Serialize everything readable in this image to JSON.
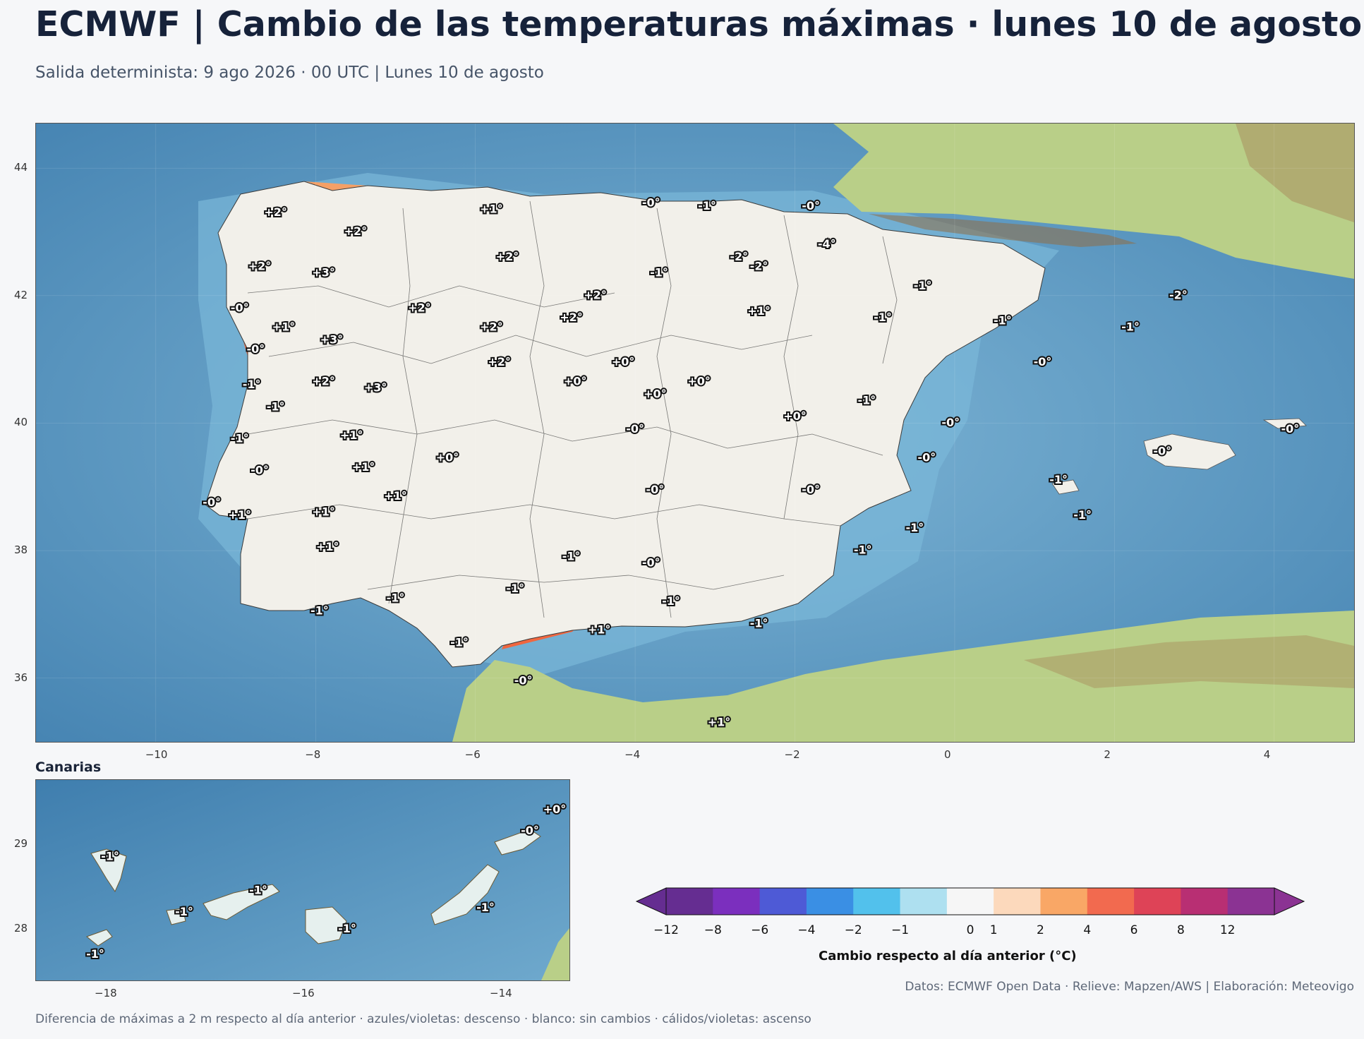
{
  "header": {
    "title": "ECMWF | Cambio de las temperaturas máximas · lunes 10 de agosto",
    "subtitle": "Salida determinista: 9 ago 2026 · 00 UTC  |  Lunes 10 de agosto"
  },
  "main_map": {
    "lon_range": [
      -11.5,
      5.0
    ],
    "lat_range": [
      35.0,
      44.7
    ],
    "x_ticks": [
      "−10",
      "−8",
      "−6",
      "−4",
      "−2",
      "0",
      "2",
      "4"
    ],
    "y_ticks": [
      "44",
      "42",
      "40",
      "38",
      "36"
    ],
    "labels": [
      {
        "text": "+2°",
        "lon": -8.5,
        "lat": 43.3
      },
      {
        "text": "+2°",
        "lon": -7.5,
        "lat": 43.0
      },
      {
        "text": "+1°",
        "lon": -5.8,
        "lat": 43.35
      },
      {
        "text": "-0°",
        "lon": -3.8,
        "lat": 43.45
      },
      {
        "text": "-1°",
        "lon": -3.1,
        "lat": 43.4
      },
      {
        "text": "-0°",
        "lon": -1.8,
        "lat": 43.4
      },
      {
        "text": "-4°",
        "lon": -1.6,
        "lat": 42.8
      },
      {
        "text": "+2°",
        "lon": -8.7,
        "lat": 42.45
      },
      {
        "text": "+3°",
        "lon": -7.9,
        "lat": 42.35
      },
      {
        "text": "+2°",
        "lon": -5.6,
        "lat": 42.6
      },
      {
        "text": "-2°",
        "lon": -2.7,
        "lat": 42.6
      },
      {
        "text": "-2°",
        "lon": -2.45,
        "lat": 42.45
      },
      {
        "text": "-1°",
        "lon": -3.7,
        "lat": 42.35
      },
      {
        "text": "+2°",
        "lon": -4.5,
        "lat": 42.0
      },
      {
        "text": "-1°",
        "lon": -0.4,
        "lat": 42.15
      },
      {
        "text": "-2°",
        "lon": 2.8,
        "lat": 42.0
      },
      {
        "text": "-0°",
        "lon": -8.95,
        "lat": 41.8
      },
      {
        "text": "+1°",
        "lon": -8.4,
        "lat": 41.5
      },
      {
        "text": "+2°",
        "lon": -6.7,
        "lat": 41.8
      },
      {
        "text": "+2°",
        "lon": -4.8,
        "lat": 41.65
      },
      {
        "text": "+1°",
        "lon": -2.45,
        "lat": 41.75
      },
      {
        "text": "-1°",
        "lon": -0.9,
        "lat": 41.65
      },
      {
        "text": "-1°",
        "lon": 0.6,
        "lat": 41.6
      },
      {
        "text": "-1°",
        "lon": 2.2,
        "lat": 41.5
      },
      {
        "text": "+3°",
        "lon": -7.8,
        "lat": 41.3
      },
      {
        "text": "+2°",
        "lon": -5.8,
        "lat": 41.5
      },
      {
        "text": "-0°",
        "lon": -8.75,
        "lat": 41.15
      },
      {
        "text": "+2°",
        "lon": -5.7,
        "lat": 40.95
      },
      {
        "text": "+0°",
        "lon": -4.15,
        "lat": 40.95
      },
      {
        "text": "-0°",
        "lon": 1.1,
        "lat": 40.95
      },
      {
        "text": "-1°",
        "lon": -8.8,
        "lat": 40.6
      },
      {
        "text": "+2°",
        "lon": -7.9,
        "lat": 40.65
      },
      {
        "text": "+3°",
        "lon": -7.25,
        "lat": 40.55
      },
      {
        "text": "+0°",
        "lon": -4.75,
        "lat": 40.65
      },
      {
        "text": "+0°",
        "lon": -3.2,
        "lat": 40.65
      },
      {
        "text": "+0°",
        "lon": -3.75,
        "lat": 40.45
      },
      {
        "text": "-1°",
        "lon": -1.1,
        "lat": 40.35
      },
      {
        "text": "-1°",
        "lon": -8.5,
        "lat": 40.25
      },
      {
        "text": "+0°",
        "lon": -2.0,
        "lat": 40.1
      },
      {
        "text": "-0°",
        "lon": -0.05,
        "lat": 40.0
      },
      {
        "text": "-0°",
        "lon": 4.2,
        "lat": 39.9
      },
      {
        "text": "+1°",
        "lon": -7.55,
        "lat": 39.8
      },
      {
        "text": "-0°",
        "lon": -4.0,
        "lat": 39.9
      },
      {
        "text": "-1°",
        "lon": -8.95,
        "lat": 39.75
      },
      {
        "text": "-0°",
        "lon": -0.35,
        "lat": 39.45
      },
      {
        "text": "-0°",
        "lon": 2.6,
        "lat": 39.55
      },
      {
        "text": "+0°",
        "lon": -6.35,
        "lat": 39.45
      },
      {
        "text": "+1°",
        "lon": -7.4,
        "lat": 39.3
      },
      {
        "text": "-0°",
        "lon": -8.7,
        "lat": 39.25
      },
      {
        "text": "-1°",
        "lon": 1.3,
        "lat": 39.1
      },
      {
        "text": "-0°",
        "lon": -3.75,
        "lat": 38.95
      },
      {
        "text": "-0°",
        "lon": -1.8,
        "lat": 38.95
      },
      {
        "text": "+1°",
        "lon": -7.0,
        "lat": 38.85
      },
      {
        "text": "-0°",
        "lon": -9.3,
        "lat": 38.75
      },
      {
        "text": "+1°",
        "lon": -8.95,
        "lat": 38.55
      },
      {
        "text": "+1°",
        "lon": -7.9,
        "lat": 38.6
      },
      {
        "text": "-1°",
        "lon": 1.6,
        "lat": 38.55
      },
      {
        "text": "-1°",
        "lon": -0.5,
        "lat": 38.35
      },
      {
        "text": "+1°",
        "lon": -7.85,
        "lat": 38.05
      },
      {
        "text": "-1°",
        "lon": -4.8,
        "lat": 37.9
      },
      {
        "text": "-1°",
        "lon": -1.15,
        "lat": 38.0
      },
      {
        "text": "-0°",
        "lon": -3.8,
        "lat": 37.8
      },
      {
        "text": "-1°",
        "lon": -5.5,
        "lat": 37.4
      },
      {
        "text": "-1°",
        "lon": -7.0,
        "lat": 37.25
      },
      {
        "text": "-1°",
        "lon": -3.55,
        "lat": 37.2
      },
      {
        "text": "-1°",
        "lon": -7.95,
        "lat": 37.05
      },
      {
        "text": "-1°",
        "lon": -2.45,
        "lat": 36.85
      },
      {
        "text": "+1°",
        "lon": -4.45,
        "lat": 36.75
      },
      {
        "text": "-1°",
        "lon": -6.2,
        "lat": 36.55
      },
      {
        "text": "-0°",
        "lon": -5.4,
        "lat": 35.95
      },
      {
        "text": "+1°",
        "lon": -2.95,
        "lat": 35.3
      }
    ]
  },
  "canary": {
    "title": "Canarias",
    "lon_range": [
      -18.7,
      -13.3
    ],
    "lat_range": [
      27.4,
      29.75
    ],
    "x_ticks": [
      "−18",
      "−16",
      "−14"
    ],
    "y_ticks": [
      "29",
      "28"
    ],
    "labels": [
      {
        "text": "-1°",
        "lon": -17.95,
        "lat": 28.85
      },
      {
        "text": "-1°",
        "lon": -17.2,
        "lat": 28.2
      },
      {
        "text": "-1°",
        "lon": -16.45,
        "lat": 28.45
      },
      {
        "text": "-1°",
        "lon": -15.55,
        "lat": 28.0
      },
      {
        "text": "-1°",
        "lon": -14.15,
        "lat": 28.25
      },
      {
        "text": "-0°",
        "lon": -13.7,
        "lat": 29.15
      },
      {
        "text": "+0°",
        "lon": -13.45,
        "lat": 29.4
      },
      {
        "text": "-1°",
        "lon": -18.1,
        "lat": 27.7
      }
    ]
  },
  "colorbar": {
    "label": "Cambio respecto al día anterior (°C)",
    "ticks": [
      "−12",
      "−8",
      "−6",
      "−4",
      "−2",
      "−1",
      "0",
      "1",
      "2",
      "4",
      "6",
      "8",
      "12"
    ],
    "colors": [
      "#652d91",
      "#7b2fbe",
      "#4e5ad6",
      "#3a8fe4",
      "#52c1ec",
      "#aee0f0",
      "#f6f6f6",
      "#fcd9bc",
      "#f9a766",
      "#f26a4f",
      "#de4357",
      "#b82f73",
      "#8b3393"
    ],
    "extend_low_color": "#652d91",
    "extend_high_color": "#8b3393"
  },
  "credits": "Datos: ECMWF Open Data · Relieve: Mapzen/AWS  |  Elaboración: Meteovigo",
  "footer": "Diferencia de máximas a 2 m respecto al día anterior · azules/violetas: descenso · blanco: sin cambios · cálidos/violetas: ascenso"
}
